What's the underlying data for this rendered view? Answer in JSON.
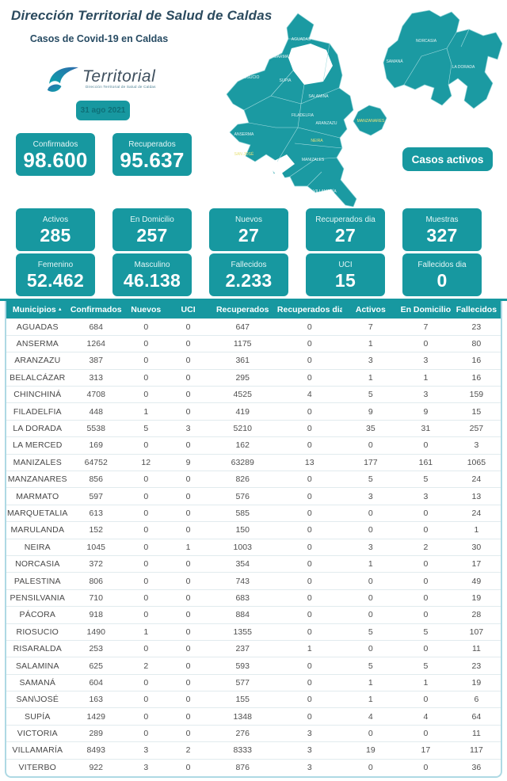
{
  "title": "Dirección Territorial de Salud de Caldas",
  "subtitle": "Casos de Covid-19 en Caldas",
  "logo": {
    "name": "Territorial",
    "tagline": "Dirección Territorial de Salud de Caldas"
  },
  "date_badge": "31 ago 2021",
  "active_cases_button": "Casos activos",
  "colors": {
    "teal": "#1798a0",
    "title_text": "#2b4a5e",
    "table_border": "#aed9e4",
    "map_label_accent": "#e8e27a"
  },
  "stats": {
    "row1": [
      {
        "label": "Confirmados",
        "value": "98.600"
      },
      {
        "label": "Recuperados",
        "value": "95.637"
      }
    ],
    "row2": [
      {
        "label": "Activos",
        "value": "285"
      },
      {
        "label": "En Domicilio",
        "value": "257"
      },
      {
        "label": "Nuevos",
        "value": "27"
      },
      {
        "label": "Recuperados dia",
        "value": "27"
      },
      {
        "label": "Muestras",
        "value": "327"
      }
    ],
    "row3": [
      {
        "label": "Femenino",
        "value": "52.462"
      },
      {
        "label": "Masculino",
        "value": "46.138"
      },
      {
        "label": "Fallecidos",
        "value": "2.233"
      },
      {
        "label": "UCI",
        "value": "15"
      },
      {
        "label": "Fallecidos dia",
        "value": "0"
      }
    ]
  },
  "map": {
    "labels": [
      "AGUADAS",
      "MARMATO",
      "RIOSUCIO",
      "SUPIA",
      "SALAMINA",
      "FILADELFIA",
      "ARANZAZU",
      "ANSERMA",
      "NEIRA",
      "MANIZALES",
      "SAN JOSÉ",
      "BELALCÁZAR",
      "CHINCHINÁ",
      "VILLAMARÍA",
      "MANZANARES",
      "NORCASIA",
      "SAMANÁ",
      "LA DORADA"
    ]
  },
  "table": {
    "sort_indicator": "▲",
    "columns": [
      "Municipios",
      "Confirmados",
      "Nuevos",
      "UCI",
      "Recuperados",
      "Recuperados dia",
      "Activos",
      "En Domicilio",
      "Fallecidos"
    ],
    "rows": [
      [
        "AGUADAS",
        "684",
        "0",
        "0",
        "647",
        "0",
        "7",
        "7",
        "23"
      ],
      [
        "ANSERMA",
        "1264",
        "0",
        "0",
        "1175",
        "0",
        "1",
        "0",
        "80"
      ],
      [
        "ARANZAZU",
        "387",
        "0",
        "0",
        "361",
        "0",
        "3",
        "3",
        "16"
      ],
      [
        "BELALCÁZAR",
        "313",
        "0",
        "0",
        "295",
        "0",
        "1",
        "1",
        "16"
      ],
      [
        "CHINCHINÁ",
        "4708",
        "0",
        "0",
        "4525",
        "4",
        "5",
        "3",
        "159"
      ],
      [
        "FILADELFIA",
        "448",
        "1",
        "0",
        "419",
        "0",
        "9",
        "9",
        "15"
      ],
      [
        "LA DORADA",
        "5538",
        "5",
        "3",
        "5210",
        "0",
        "35",
        "31",
        "257"
      ],
      [
        "LA MERCED",
        "169",
        "0",
        "0",
        "162",
        "0",
        "0",
        "0",
        "3"
      ],
      [
        "MANIZALES",
        "64752",
        "12",
        "9",
        "63289",
        "13",
        "177",
        "161",
        "1065"
      ],
      [
        "MANZANARES",
        "856",
        "0",
        "0",
        "826",
        "0",
        "5",
        "5",
        "24"
      ],
      [
        "MARMATO",
        "597",
        "0",
        "0",
        "576",
        "0",
        "3",
        "3",
        "13"
      ],
      [
        "MARQUETALIA",
        "613",
        "0",
        "0",
        "585",
        "0",
        "0",
        "0",
        "24"
      ],
      [
        "MARULANDA",
        "152",
        "0",
        "0",
        "150",
        "0",
        "0",
        "0",
        "1"
      ],
      [
        "NEIRA",
        "1045",
        "0",
        "1",
        "1003",
        "0",
        "3",
        "2",
        "30"
      ],
      [
        "NORCASIA",
        "372",
        "0",
        "0",
        "354",
        "0",
        "1",
        "0",
        "17"
      ],
      [
        "PALESTINA",
        "806",
        "0",
        "0",
        "743",
        "0",
        "0",
        "0",
        "49"
      ],
      [
        "PENSILVANIA",
        "710",
        "0",
        "0",
        "683",
        "0",
        "0",
        "0",
        "19"
      ],
      [
        "PÁCORA",
        "918",
        "0",
        "0",
        "884",
        "0",
        "0",
        "0",
        "28"
      ],
      [
        "RIOSUCIO",
        "1490",
        "1",
        "0",
        "1355",
        "0",
        "5",
        "5",
        "107"
      ],
      [
        "RISARALDA",
        "253",
        "0",
        "0",
        "237",
        "1",
        "0",
        "0",
        "11"
      ],
      [
        "SALAMINA",
        "625",
        "2",
        "0",
        "593",
        "0",
        "5",
        "5",
        "23"
      ],
      [
        "SAMANÁ",
        "604",
        "0",
        "0",
        "577",
        "0",
        "1",
        "1",
        "19"
      ],
      [
        "SAN\\JOSÉ",
        "163",
        "0",
        "0",
        "155",
        "0",
        "1",
        "0",
        "6"
      ],
      [
        "SUPÍA",
        "1429",
        "0",
        "0",
        "1348",
        "0",
        "4",
        "4",
        "64"
      ],
      [
        "VICTORIA",
        "289",
        "0",
        "0",
        "276",
        "3",
        "0",
        "0",
        "11"
      ],
      [
        "VILLAMARÍA",
        "8493",
        "3",
        "2",
        "8333",
        "3",
        "19",
        "17",
        "117"
      ],
      [
        "VITERBO",
        "922",
        "3",
        "0",
        "876",
        "3",
        "0",
        "0",
        "36"
      ]
    ]
  }
}
